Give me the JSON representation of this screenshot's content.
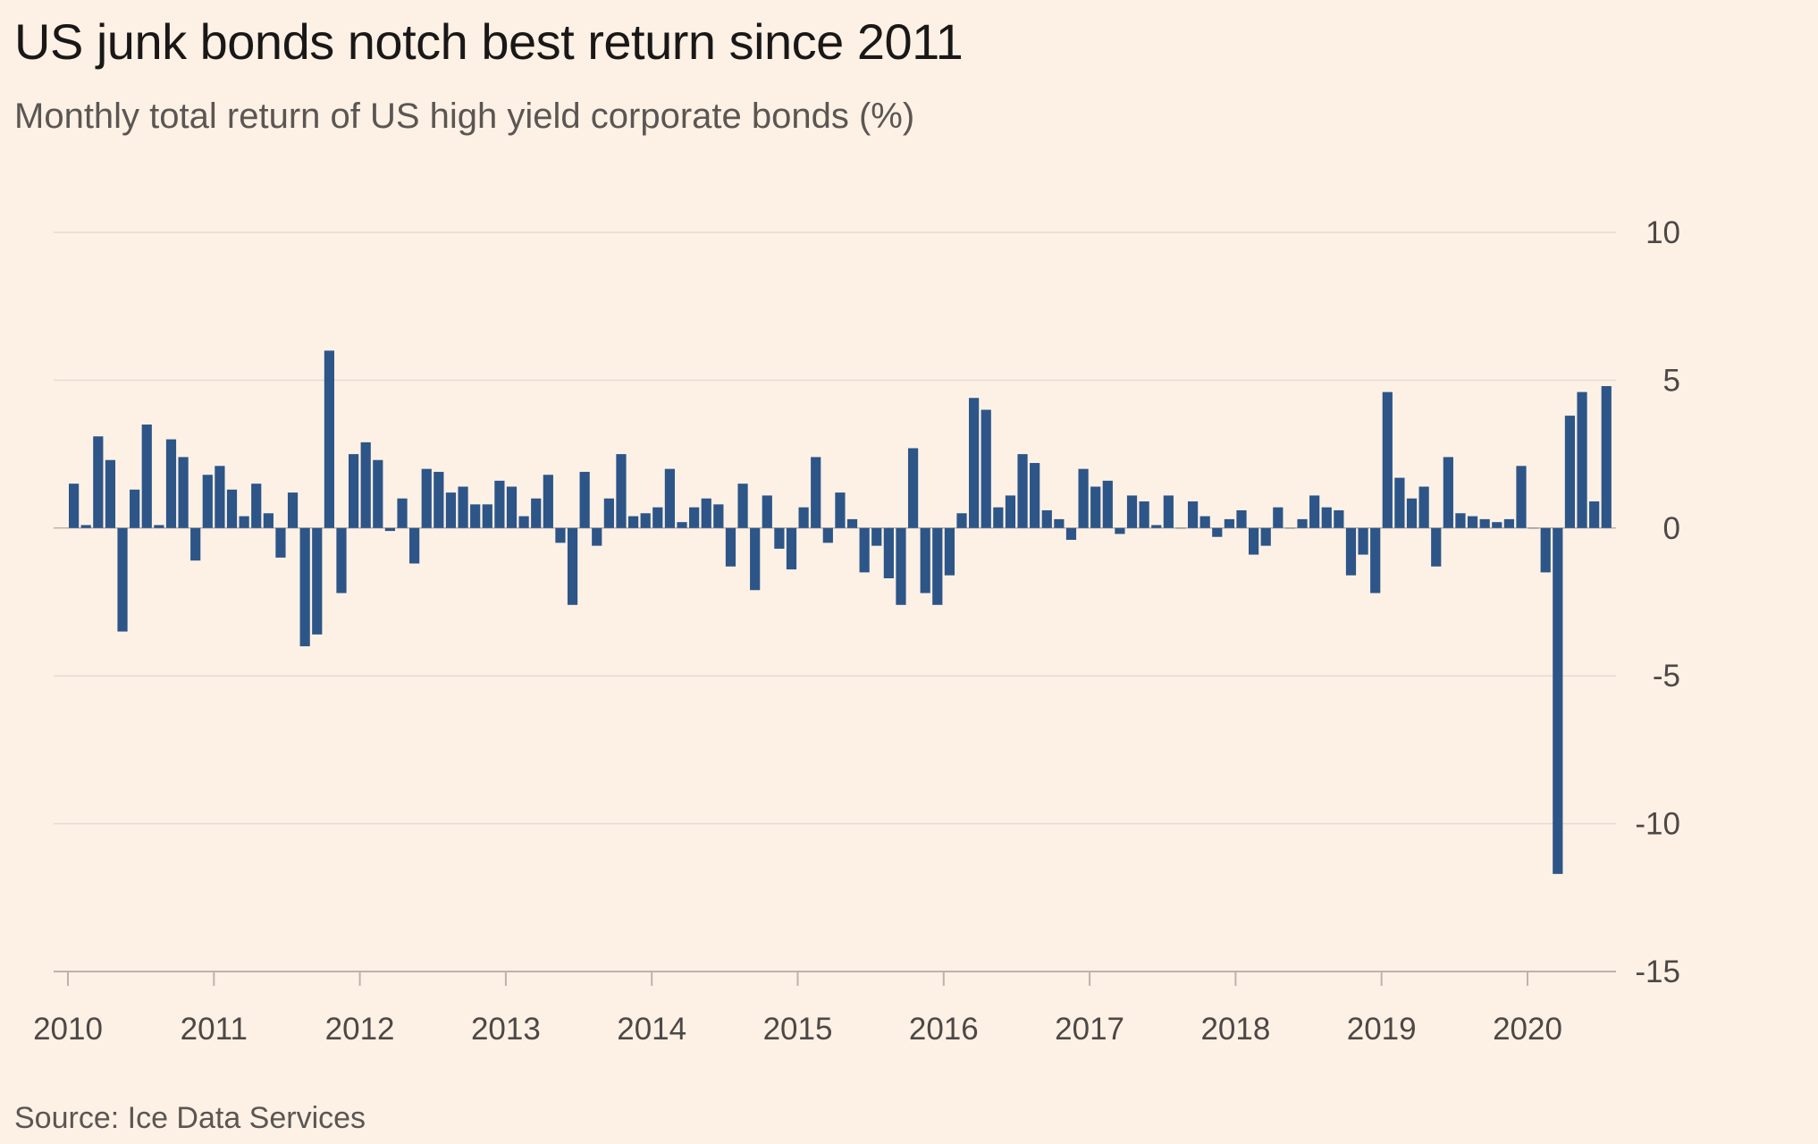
{
  "title": "US junk bonds notch best return since 2011",
  "subtitle": "Monthly total return of US high yield corporate bonds (%)",
  "source": "Source: Ice Data Services",
  "colors": {
    "background": "#fdf1e6",
    "bar": "#2d5587",
    "grid": "#e6dbd1",
    "axis": "#bdb3aa"
  },
  "chart_data": {
    "type": "bar",
    "title": "US junk bonds notch best return since 2011",
    "subtitle": "Monthly total return of US high yield corporate bonds (%)",
    "xlabel": "",
    "ylabel": "",
    "ylim": [
      -15,
      10
    ],
    "yticks": [
      10,
      5,
      0,
      -5,
      -10,
      -15
    ],
    "xticks": [
      "2010",
      "2011",
      "2012",
      "2013",
      "2014",
      "2015",
      "2016",
      "2017",
      "2018",
      "2019",
      "2020"
    ],
    "y_axis_side": "right",
    "grid": true,
    "legend": "none",
    "start_month": "2010-01",
    "values": [
      1.5,
      0.1,
      3.1,
      2.3,
      -3.5,
      1.3,
      3.5,
      0.1,
      3.0,
      2.4,
      -1.1,
      1.8,
      2.1,
      1.3,
      0.4,
      1.5,
      0.5,
      -1.0,
      1.2,
      -4.0,
      -3.6,
      6.0,
      -2.2,
      2.5,
      2.9,
      2.3,
      -0.1,
      1.0,
      -1.2,
      2.0,
      1.9,
      1.2,
      1.4,
      0.8,
      0.8,
      1.6,
      1.4,
      0.4,
      1.0,
      1.8,
      -0.5,
      -2.6,
      1.9,
      -0.6,
      1.0,
      2.5,
      0.4,
      0.5,
      0.7,
      2.0,
      0.2,
      0.7,
      1.0,
      0.8,
      -1.3,
      1.5,
      -2.1,
      1.1,
      -0.7,
      -1.4,
      0.7,
      2.4,
      -0.5,
      1.2,
      0.3,
      -1.5,
      -0.6,
      -1.7,
      -2.6,
      2.7,
      -2.2,
      -2.6,
      -1.6,
      0.5,
      4.4,
      4.0,
      0.7,
      1.1,
      2.5,
      2.2,
      0.6,
      0.3,
      -0.4,
      2.0,
      1.4,
      1.6,
      -0.2,
      1.1,
      0.9,
      0.1,
      1.1,
      0.0,
      0.9,
      0.4,
      -0.3,
      0.3,
      0.6,
      -0.9,
      -0.6,
      0.7,
      0.0,
      0.3,
      1.1,
      0.7,
      0.6,
      -1.6,
      -0.9,
      -2.2,
      4.6,
      1.7,
      1.0,
      1.4,
      -1.3,
      2.4,
      0.5,
      0.4,
      0.3,
      0.2,
      0.3,
      2.1,
      0.0,
      -1.5,
      -11.7,
      3.8,
      4.6,
      0.9,
      4.8
    ]
  }
}
